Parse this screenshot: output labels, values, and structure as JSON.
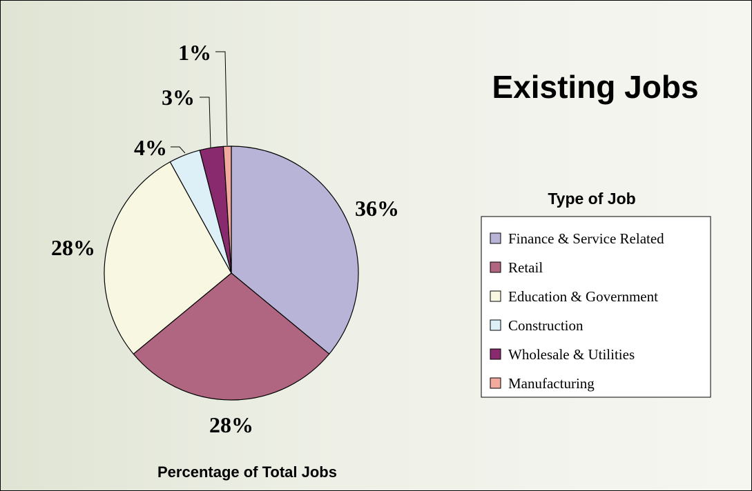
{
  "chart_data": {
    "type": "pie",
    "title": "Existing Jobs",
    "xlabel": "Percentage of Total Jobs",
    "legend_title": "Type of Job",
    "legend_position": "right",
    "slices": [
      {
        "label": "Finance & Service Related",
        "value": 36,
        "display": "36%",
        "color": "#b8b4d8"
      },
      {
        "label": "Retail",
        "value": 28,
        "display": "28%",
        "color": "#b06580"
      },
      {
        "label": "Education & Government",
        "value": 28,
        "display": "28%",
        "color": "#f8f8e2"
      },
      {
        "label": "Construction",
        "value": 4,
        "display": "4%",
        "color": "#ddf0f7"
      },
      {
        "label": "Wholesale & Utilities",
        "value": 3,
        "display": "3%",
        "color": "#8a2a6e"
      },
      {
        "label": "Manufacturing",
        "value": 1,
        "display": "1%",
        "color": "#f2a99e"
      }
    ]
  }
}
